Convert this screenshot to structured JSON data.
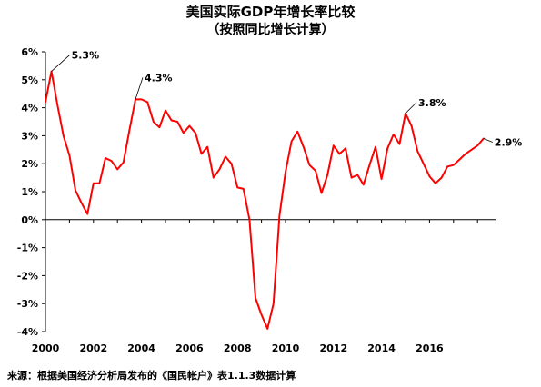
{
  "chart_data": {
    "type": "line",
    "title": "美国实际GDP年增长率比较",
    "subtitle": "（按照同比增长计算）",
    "source": "来源：根据美国经济分析局发布的《国民帐户》表1.1.3数据计算",
    "y_tick_labels": [
      "6%",
      "5%",
      "4%",
      "3%",
      "2%",
      "1%",
      "0%",
      "-1%",
      "-2%",
      "-3%",
      "-4%"
    ],
    "x_tick_labels": [
      "2000",
      "2002",
      "2004",
      "2006",
      "2008",
      "2010",
      "2012",
      "2014",
      "2016"
    ],
    "ylim": [
      -4,
      6
    ],
    "xlim": [
      2000,
      2018.75
    ],
    "grid": false,
    "line_color": "#ff0000",
    "series": [
      {
        "x": [
          2000.0,
          2000.25,
          2000.5,
          2000.75,
          2001.0,
          2001.25,
          2001.5,
          2001.75,
          2002.0,
          2002.25,
          2002.5,
          2002.75,
          2003.0,
          2003.25,
          2003.5,
          2003.75,
          2004.0,
          2004.25,
          2004.5,
          2004.75,
          2005.0,
          2005.25,
          2005.5,
          2005.75,
          2006.0,
          2006.25,
          2006.5,
          2006.75,
          2007.0,
          2007.25,
          2007.5,
          2007.75,
          2008.0,
          2008.25,
          2008.5,
          2008.75,
          2009.0,
          2009.25,
          2009.5,
          2009.75,
          2010.0,
          2010.25,
          2010.5,
          2010.75,
          2011.0,
          2011.25,
          2011.5,
          2011.75,
          2012.0,
          2012.25,
          2012.5,
          2012.75,
          2013.0,
          2013.25,
          2013.5,
          2013.75,
          2014.0,
          2014.25,
          2014.5,
          2014.75,
          2015.0,
          2015.25,
          2015.5,
          2015.75,
          2016.0,
          2016.25,
          2016.5,
          2016.75,
          2017.0,
          2017.25,
          2017.5,
          2017.75,
          2018.0,
          2018.25
        ],
        "values": [
          4.2,
          5.3,
          4.1,
          3.0,
          2.3,
          1.05,
          0.6,
          0.2,
          1.3,
          1.3,
          2.2,
          2.1,
          1.8,
          2.05,
          3.2,
          4.3,
          4.3,
          4.2,
          3.5,
          3.3,
          3.9,
          3.55,
          3.5,
          3.1,
          3.35,
          3.1,
          2.35,
          2.6,
          1.5,
          1.8,
          2.25,
          2.0,
          1.15,
          1.1,
          0.0,
          -2.8,
          -3.4,
          -3.9,
          -3.0,
          0.15,
          1.7,
          2.8,
          3.15,
          2.6,
          1.95,
          1.75,
          0.95,
          1.6,
          2.65,
          2.35,
          2.55,
          1.5,
          1.6,
          1.25,
          1.95,
          2.6,
          1.45,
          2.55,
          3.05,
          2.7,
          3.8,
          3.35,
          2.45,
          2.0,
          1.55,
          1.3,
          1.5,
          1.9,
          1.95,
          2.15,
          2.35,
          2.5,
          2.65,
          2.9
        ]
      }
    ],
    "annotations": [
      {
        "label": "5.3%",
        "x": 2000.25,
        "y": 5.3
      },
      {
        "label": "4.3%",
        "x": 2003.75,
        "y": 4.3
      },
      {
        "label": "3.8%",
        "x": 2015.0,
        "y": 3.8
      },
      {
        "label": "2.9%",
        "x": 2018.25,
        "y": 2.9
      }
    ]
  }
}
